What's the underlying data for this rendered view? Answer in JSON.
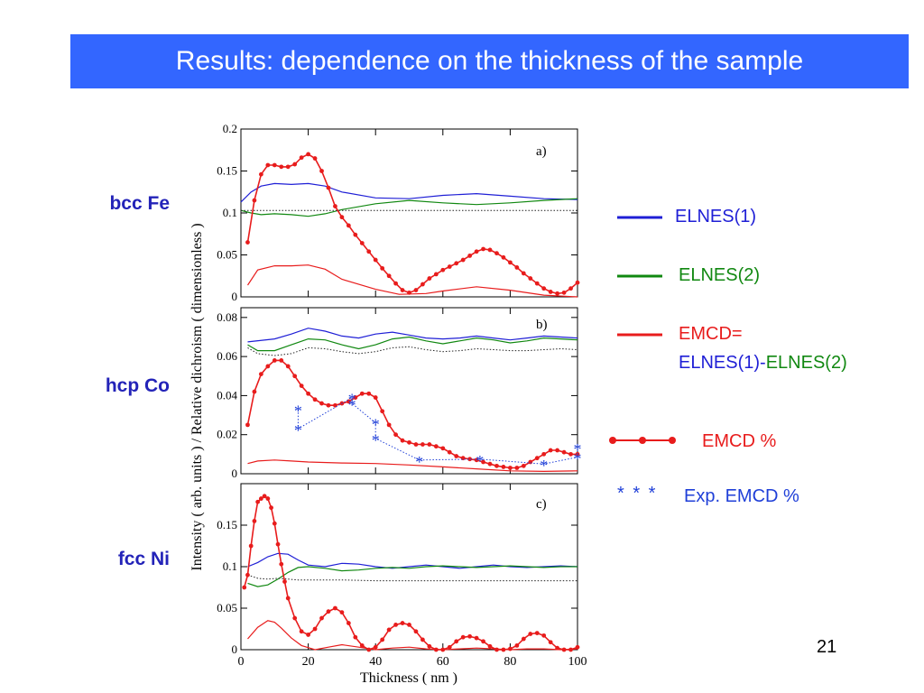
{
  "slide": {
    "title": "Results: dependence on the thickness of the sample",
    "page_number": "21",
    "materials": [
      "bcc Fe",
      "hcp Co",
      "fcc Ni"
    ]
  },
  "legend": {
    "elnes1": "ELNES(1)",
    "elnes2": "ELNES(2)",
    "emcd_line1": "EMCD=",
    "emcd_part1": "ELNES(1)",
    "emcd_dash": "-",
    "emcd_part2": "ELNES(2)",
    "emcd_pct": "EMCD %",
    "exp_marker": "* * *",
    "exp_pct": "Exp. EMCD %"
  },
  "colors": {
    "title_bg": "#3366ff",
    "elnes1": "#1f1fd6",
    "elnes2": "#118811",
    "emcd": "#e81c1c",
    "exp": "#1f3fd8",
    "material_label": "#2323b8"
  },
  "chart_data": [
    {
      "type": "line",
      "panel_label": "a)",
      "ylim": [
        0,
        0.2
      ],
      "yticks": [
        "0",
        "0.05",
        "0.1",
        "0.15",
        "0.2"
      ],
      "xlim": [
        0,
        100
      ],
      "series": [
        {
          "role": "elnes1",
          "x": [
            0,
            3,
            6,
            10,
            15,
            20,
            25,
            30,
            40,
            50,
            60,
            70,
            80,
            90,
            100
          ],
          "y": [
            0.113,
            0.125,
            0.132,
            0.135,
            0.134,
            0.135,
            0.132,
            0.125,
            0.118,
            0.117,
            0.121,
            0.123,
            0.12,
            0.117,
            0.116
          ]
        },
        {
          "role": "elnes2",
          "x": [
            0,
            3,
            6,
            10,
            15,
            20,
            25,
            30,
            40,
            50,
            60,
            70,
            80,
            90,
            100
          ],
          "y": [
            0.103,
            0.1,
            0.098,
            0.099,
            0.098,
            0.096,
            0.099,
            0.104,
            0.111,
            0.115,
            0.112,
            0.11,
            0.112,
            0.115,
            0.117
          ]
        },
        {
          "role": "reference",
          "x": [
            0,
            100
          ],
          "y": [
            0.103,
            0.103
          ]
        },
        {
          "role": "emcd",
          "x": [
            2,
            5,
            10,
            15,
            20,
            25,
            30,
            40,
            47,
            55,
            60,
            70,
            80,
            90,
            100
          ],
          "y": [
            0.014,
            0.032,
            0.037,
            0.037,
            0.038,
            0.033,
            0.021,
            0.009,
            0.003,
            0.004,
            0.007,
            0.012,
            0.008,
            0.002,
            0.0
          ]
        },
        {
          "role": "emcd_pct",
          "x": [
            2,
            4,
            6,
            8,
            10,
            12,
            14,
            16,
            18,
            20,
            22,
            24,
            26,
            28,
            30,
            32,
            34,
            36,
            38,
            40,
            42,
            44,
            46,
            48,
            50,
            52,
            54,
            56,
            58,
            60,
            62,
            64,
            66,
            68,
            70,
            72,
            74,
            76,
            78,
            80,
            82,
            84,
            86,
            88,
            90,
            92,
            94,
            96,
            98,
            100
          ],
          "y": [
            0.065,
            0.115,
            0.146,
            0.157,
            0.157,
            0.155,
            0.155,
            0.158,
            0.166,
            0.17,
            0.165,
            0.15,
            0.13,
            0.108,
            0.095,
            0.085,
            0.074,
            0.064,
            0.054,
            0.044,
            0.034,
            0.025,
            0.016,
            0.008,
            0.005,
            0.008,
            0.015,
            0.022,
            0.027,
            0.032,
            0.036,
            0.04,
            0.044,
            0.049,
            0.054,
            0.057,
            0.056,
            0.052,
            0.047,
            0.041,
            0.035,
            0.028,
            0.022,
            0.016,
            0.01,
            0.006,
            0.004,
            0.005,
            0.01,
            0.017
          ]
        }
      ]
    },
    {
      "type": "line",
      "panel_label": "b)",
      "ylim": [
        0,
        0.085
      ],
      "yticks": [
        "0",
        "0.02",
        "0.04",
        "0.06",
        "0.08"
      ],
      "xlim": [
        0,
        100
      ],
      "series": [
        {
          "role": "elnes1",
          "x": [
            2,
            10,
            15,
            20,
            25,
            30,
            35,
            40,
            45,
            50,
            55,
            60,
            65,
            70,
            75,
            80,
            85,
            90,
            95,
            100
          ],
          "y": [
            0.0675,
            0.069,
            0.0715,
            0.0745,
            0.073,
            0.0705,
            0.0695,
            0.0715,
            0.0725,
            0.071,
            0.0695,
            0.069,
            0.0695,
            0.0705,
            0.0695,
            0.0685,
            0.0695,
            0.0705,
            0.07,
            0.0695
          ]
        },
        {
          "role": "elnes2",
          "x": [
            2,
            5,
            10,
            15,
            20,
            25,
            30,
            35,
            40,
            45,
            50,
            55,
            60,
            65,
            70,
            75,
            80,
            85,
            90,
            95,
            100
          ],
          "y": [
            0.066,
            0.063,
            0.063,
            0.066,
            0.069,
            0.0685,
            0.066,
            0.064,
            0.066,
            0.069,
            0.07,
            0.068,
            0.0665,
            0.068,
            0.0695,
            0.0685,
            0.067,
            0.068,
            0.0695,
            0.069,
            0.0685
          ]
        },
        {
          "role": "reference",
          "x": [
            2,
            5,
            10,
            15,
            20,
            25,
            30,
            35,
            40,
            45,
            50,
            55,
            60,
            65,
            70,
            75,
            80,
            85,
            90,
            95,
            100
          ],
          "y": [
            0.0645,
            0.0615,
            0.0605,
            0.0615,
            0.0645,
            0.064,
            0.0625,
            0.0615,
            0.0625,
            0.0645,
            0.065,
            0.0635,
            0.0625,
            0.063,
            0.064,
            0.0635,
            0.063,
            0.063,
            0.0635,
            0.064,
            0.0635
          ]
        },
        {
          "role": "emcd",
          "x": [
            2,
            5,
            10,
            15,
            20,
            30,
            40,
            50,
            60,
            70,
            80,
            90,
            100
          ],
          "y": [
            0.0052,
            0.0065,
            0.007,
            0.0065,
            0.006,
            0.0055,
            0.0052,
            0.0045,
            0.0035,
            0.0025,
            0.0015,
            0.0012,
            0.0015
          ]
        },
        {
          "role": "emcd_pct",
          "x": [
            2,
            4,
            6,
            8,
            10,
            12,
            14,
            16,
            18,
            20,
            22,
            24,
            26,
            28,
            30,
            32,
            34,
            36,
            38,
            40,
            42,
            44,
            46,
            48,
            50,
            52,
            54,
            56,
            58,
            60,
            62,
            64,
            66,
            68,
            70,
            72,
            74,
            76,
            78,
            80,
            82,
            84,
            86,
            88,
            90,
            92,
            94,
            96,
            98,
            100
          ],
          "y": [
            0.025,
            0.042,
            0.051,
            0.055,
            0.058,
            0.058,
            0.055,
            0.05,
            0.045,
            0.041,
            0.038,
            0.036,
            0.035,
            0.035,
            0.036,
            0.037,
            0.039,
            0.041,
            0.041,
            0.039,
            0.032,
            0.025,
            0.02,
            0.017,
            0.016,
            0.015,
            0.015,
            0.015,
            0.014,
            0.013,
            0.011,
            0.009,
            0.008,
            0.0075,
            0.007,
            0.006,
            0.005,
            0.004,
            0.0035,
            0.003,
            0.003,
            0.004,
            0.006,
            0.008,
            0.01,
            0.012,
            0.012,
            0.011,
            0.01,
            0.01
          ]
        },
        {
          "role": "exp",
          "x": [
            17,
            17,
            33,
            33,
            40,
            40,
            53,
            71,
            90,
            100,
            100
          ],
          "y": [
            0.033,
            0.023,
            0.039,
            0.036,
            0.026,
            0.018,
            0.007,
            0.0075,
            0.005,
            0.0085,
            0.0135
          ]
        }
      ]
    },
    {
      "type": "line",
      "panel_label": "c)",
      "ylim": [
        0,
        0.2
      ],
      "yticks": [
        "0",
        "0.05",
        "0.1",
        "0.15"
      ],
      "xlim": [
        0,
        100
      ],
      "xticks": [
        "0",
        "20",
        "40",
        "60",
        "80",
        "100"
      ],
      "xlabel": "Thickness ( nm )",
      "ylabel": "Intensity ( arb. units ) / Relative dichroism ( dimensionless )",
      "series": [
        {
          "role": "elnes1",
          "x": [
            2,
            5,
            8,
            11,
            14,
            17,
            20,
            25,
            30,
            35,
            40,
            45,
            50,
            55,
            60,
            65,
            70,
            75,
            80,
            85,
            90,
            95,
            100
          ],
          "y": [
            0.1,
            0.105,
            0.112,
            0.116,
            0.115,
            0.108,
            0.102,
            0.1,
            0.104,
            0.103,
            0.1,
            0.098,
            0.1,
            0.102,
            0.1,
            0.098,
            0.1,
            0.102,
            0.1,
            0.099,
            0.1,
            0.101,
            0.1
          ]
        },
        {
          "role": "elnes2",
          "x": [
            2,
            5,
            8,
            11,
            14,
            17,
            20,
            25,
            30,
            35,
            40,
            45,
            50,
            55,
            60,
            65,
            70,
            75,
            80,
            85,
            90,
            95,
            100
          ],
          "y": [
            0.08,
            0.076,
            0.078,
            0.085,
            0.093,
            0.099,
            0.1,
            0.098,
            0.095,
            0.096,
            0.098,
            0.099,
            0.098,
            0.1,
            0.101,
            0.1,
            0.099,
            0.1,
            0.101,
            0.1,
            0.099,
            0.1,
            0.1
          ]
        },
        {
          "role": "reference",
          "x": [
            2,
            5,
            8,
            11,
            14,
            17,
            20,
            30,
            40,
            50,
            60,
            70,
            80,
            90,
            100
          ],
          "y": [
            0.09,
            0.086,
            0.085,
            0.086,
            0.085,
            0.084,
            0.084,
            0.084,
            0.083,
            0.083,
            0.083,
            0.083,
            0.083,
            0.083,
            0.083
          ]
        },
        {
          "role": "emcd",
          "x": [
            2,
            5,
            8,
            10,
            12,
            15,
            18,
            22,
            26,
            30,
            35,
            40,
            45,
            50,
            55,
            60,
            65,
            70,
            75,
            80,
            85,
            90,
            95,
            100
          ],
          "y": [
            0.013,
            0.027,
            0.035,
            0.033,
            0.026,
            0.014,
            0.005,
            0.0,
            0.003,
            0.006,
            0.003,
            0.0,
            0.002,
            0.003,
            0.001,
            0.0,
            0.001,
            0.002,
            0.001,
            0.0,
            0.001,
            0.001,
            0.0,
            0.001
          ]
        },
        {
          "role": "emcd_pct",
          "x": [
            1,
            2,
            3,
            4,
            5,
            6,
            7,
            8,
            9,
            10,
            11,
            12,
            13,
            14,
            16,
            18,
            20,
            22,
            24,
            26,
            28,
            30,
            32,
            34,
            36,
            38,
            40,
            42,
            44,
            46,
            48,
            50,
            52,
            54,
            56,
            58,
            60,
            62,
            64,
            66,
            68,
            70,
            72,
            74,
            76,
            78,
            80,
            82,
            84,
            86,
            88,
            90,
            92,
            94,
            96,
            98,
            100
          ],
          "y": [
            0.075,
            0.09,
            0.125,
            0.155,
            0.178,
            0.182,
            0.185,
            0.182,
            0.171,
            0.152,
            0.127,
            0.103,
            0.082,
            0.062,
            0.038,
            0.022,
            0.018,
            0.025,
            0.038,
            0.046,
            0.05,
            0.045,
            0.032,
            0.015,
            0.005,
            0.0,
            0.003,
            0.012,
            0.024,
            0.03,
            0.032,
            0.03,
            0.022,
            0.012,
            0.004,
            0.0,
            0.0,
            0.003,
            0.01,
            0.015,
            0.016,
            0.014,
            0.01,
            0.004,
            0.0,
            0.0,
            0.001,
            0.005,
            0.013,
            0.019,
            0.02,
            0.017,
            0.009,
            0.002,
            0.0,
            0.0,
            0.003
          ]
        }
      ]
    }
  ]
}
